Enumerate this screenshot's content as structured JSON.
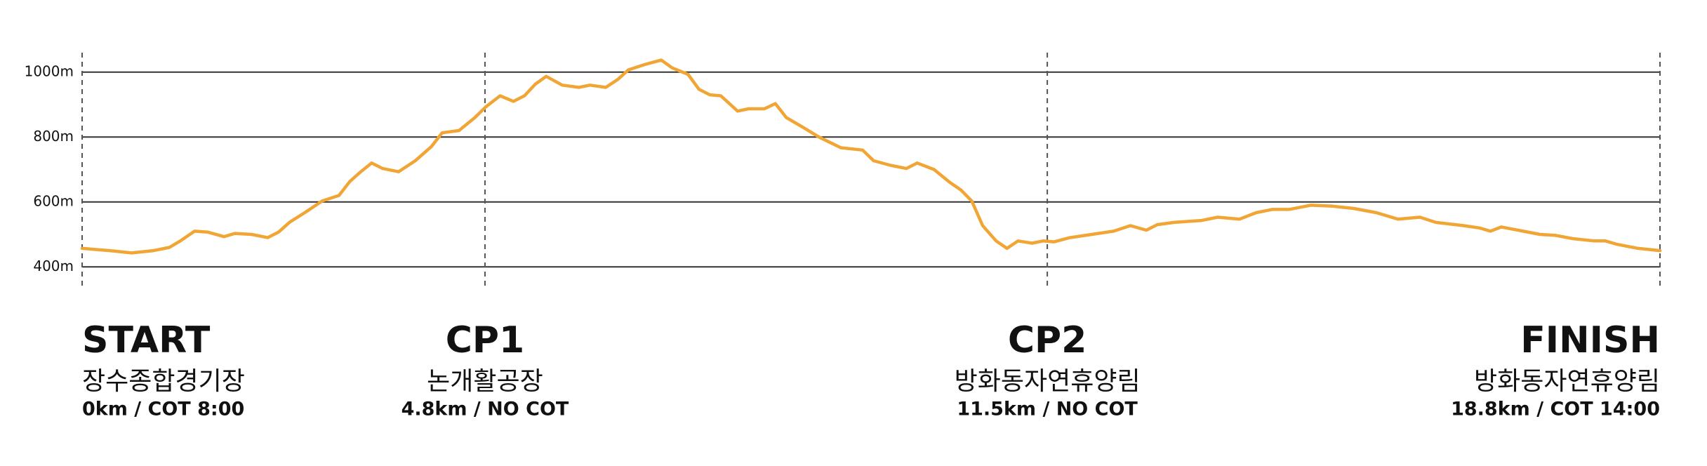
{
  "chart_data": {
    "type": "line",
    "x": [
      0,
      0.33,
      0.59,
      0.85,
      1.04,
      1.17,
      1.34,
      1.5,
      1.69,
      1.82,
      2.02,
      2.21,
      2.34,
      2.47,
      2.67,
      2.86,
      3.06,
      3.19,
      3.32,
      3.45,
      3.58,
      3.77,
      3.97,
      4.16,
      4.29,
      4.49,
      4.68,
      4.81,
      4.98,
      5.14,
      5.27,
      5.4,
      5.53,
      5.72,
      5.92,
      6.05,
      6.24,
      6.38,
      6.51,
      6.7,
      6.9,
      7.03,
      7.22,
      7.35,
      7.48,
      7.61,
      7.81,
      7.94,
      8.13,
      8.26,
      8.39,
      8.59,
      8.78,
      9.04,
      9.3,
      9.43,
      9.63,
      9.82,
      9.95,
      10.15,
      10.34,
      10.47,
      10.6,
      10.73,
      10.89,
      11.02,
      11.15,
      11.32,
      11.45,
      11.58,
      11.77,
      12.03,
      12.29,
      12.49,
      12.68,
      12.81,
      13.01,
      13.34,
      13.53,
      13.79,
      13.99,
      14.18,
      14.38,
      14.64,
      14.9,
      15.15,
      15.42,
      15.68,
      15.94,
      16.13,
      16.46,
      16.65,
      16.78,
      16.91,
      17.11,
      17.37,
      17.56,
      17.76,
      18.02,
      18.15,
      18.28,
      18.54,
      18.8
    ],
    "values": [
      457,
      450,
      443,
      450,
      460,
      480,
      510,
      507,
      493,
      503,
      500,
      490,
      507,
      537,
      570,
      603,
      620,
      663,
      693,
      720,
      703,
      693,
      727,
      770,
      813,
      820,
      860,
      893,
      927,
      910,
      927,
      963,
      987,
      960,
      953,
      960,
      953,
      977,
      1007,
      1023,
      1037,
      1013,
      993,
      947,
      930,
      927,
      880,
      887,
      887,
      903,
      860,
      830,
      800,
      767,
      760,
      727,
      713,
      703,
      720,
      700,
      660,
      637,
      603,
      527,
      480,
      457,
      480,
      473,
      480,
      477,
      490,
      500,
      510,
      527,
      513,
      530,
      537,
      543,
      553,
      547,
      567,
      577,
      577,
      590,
      587,
      580,
      567,
      547,
      553,
      537,
      527,
      520,
      510,
      523,
      513,
      500,
      497,
      487,
      480,
      480,
      470,
      457,
      450
    ],
    "color": "#f0a535",
    "xlim": [
      0,
      18.8
    ],
    "ylim": [
      340,
      1060
    ],
    "yticks": [
      {
        "value": 400,
        "label": "400m"
      },
      {
        "value": 600,
        "label": "600m"
      },
      {
        "value": 800,
        "label": "800m"
      },
      {
        "value": 1000,
        "label": "1000m"
      }
    ],
    "grid": true,
    "checkpoints": [
      {
        "km": 0,
        "name": "START",
        "place": "장수종합경기장",
        "info": "0km / COT 8:00"
      },
      {
        "km": 4.8,
        "name": "CP1",
        "place": "논개활공장",
        "info": "4.8km / NO COT"
      },
      {
        "km": 11.5,
        "name": "CP2",
        "place": "방화동자연휴양림",
        "info": "11.5km / NO COT"
      },
      {
        "km": 18.8,
        "name": "FINISH",
        "place": "방화동자연휴양림",
        "info": "18.8km / COT 14:00"
      }
    ]
  }
}
